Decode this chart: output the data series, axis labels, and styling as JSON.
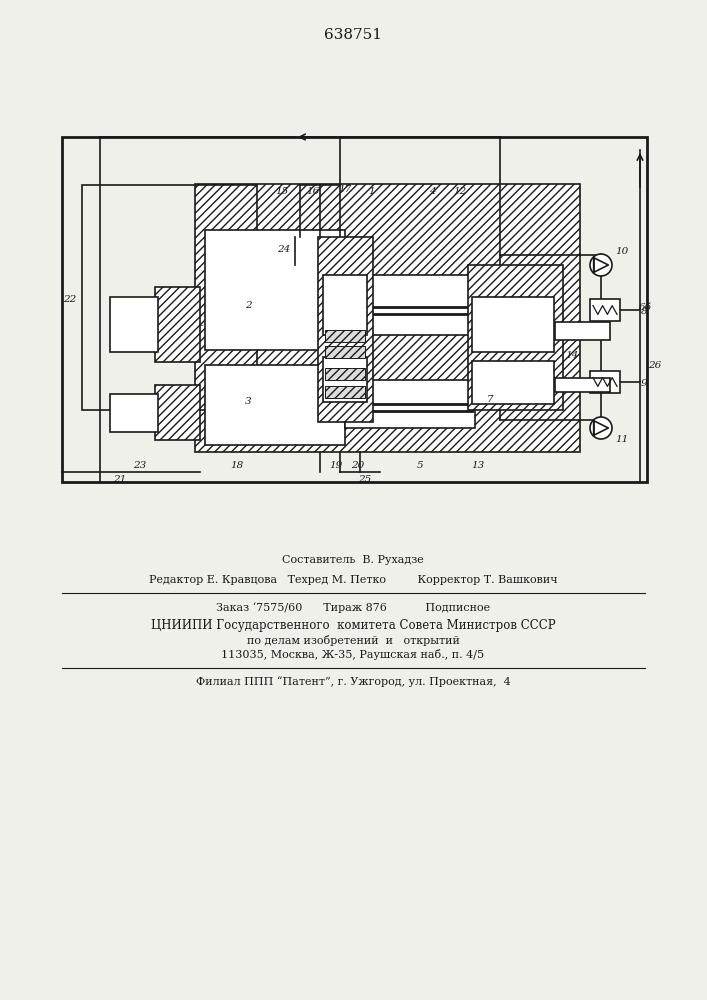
{
  "patent_number": "638751",
  "bg_color": "#f0f0eb",
  "line_color": "#1a1a1a",
  "footer": {
    "line1_center": "Составитель  В. Рухадзе",
    "line2": "Редактор Е. Кравцова   Техред М. Петко         Корректор Т. Вашкович",
    "line3": "Заказ ‘7575/60      Тираж 876           Подписное",
    "line4": "ЦНИИПИ Государственного  комитета Совета Министров СССР",
    "line5": "по делам изобретений  и   открытий",
    "line6": "113035, Москва, Ж-35, Раушская наб., п. 4/5",
    "line7": "Филиал ППП “Патент”, г. Ужгород, ул. Проектная,  4"
  }
}
